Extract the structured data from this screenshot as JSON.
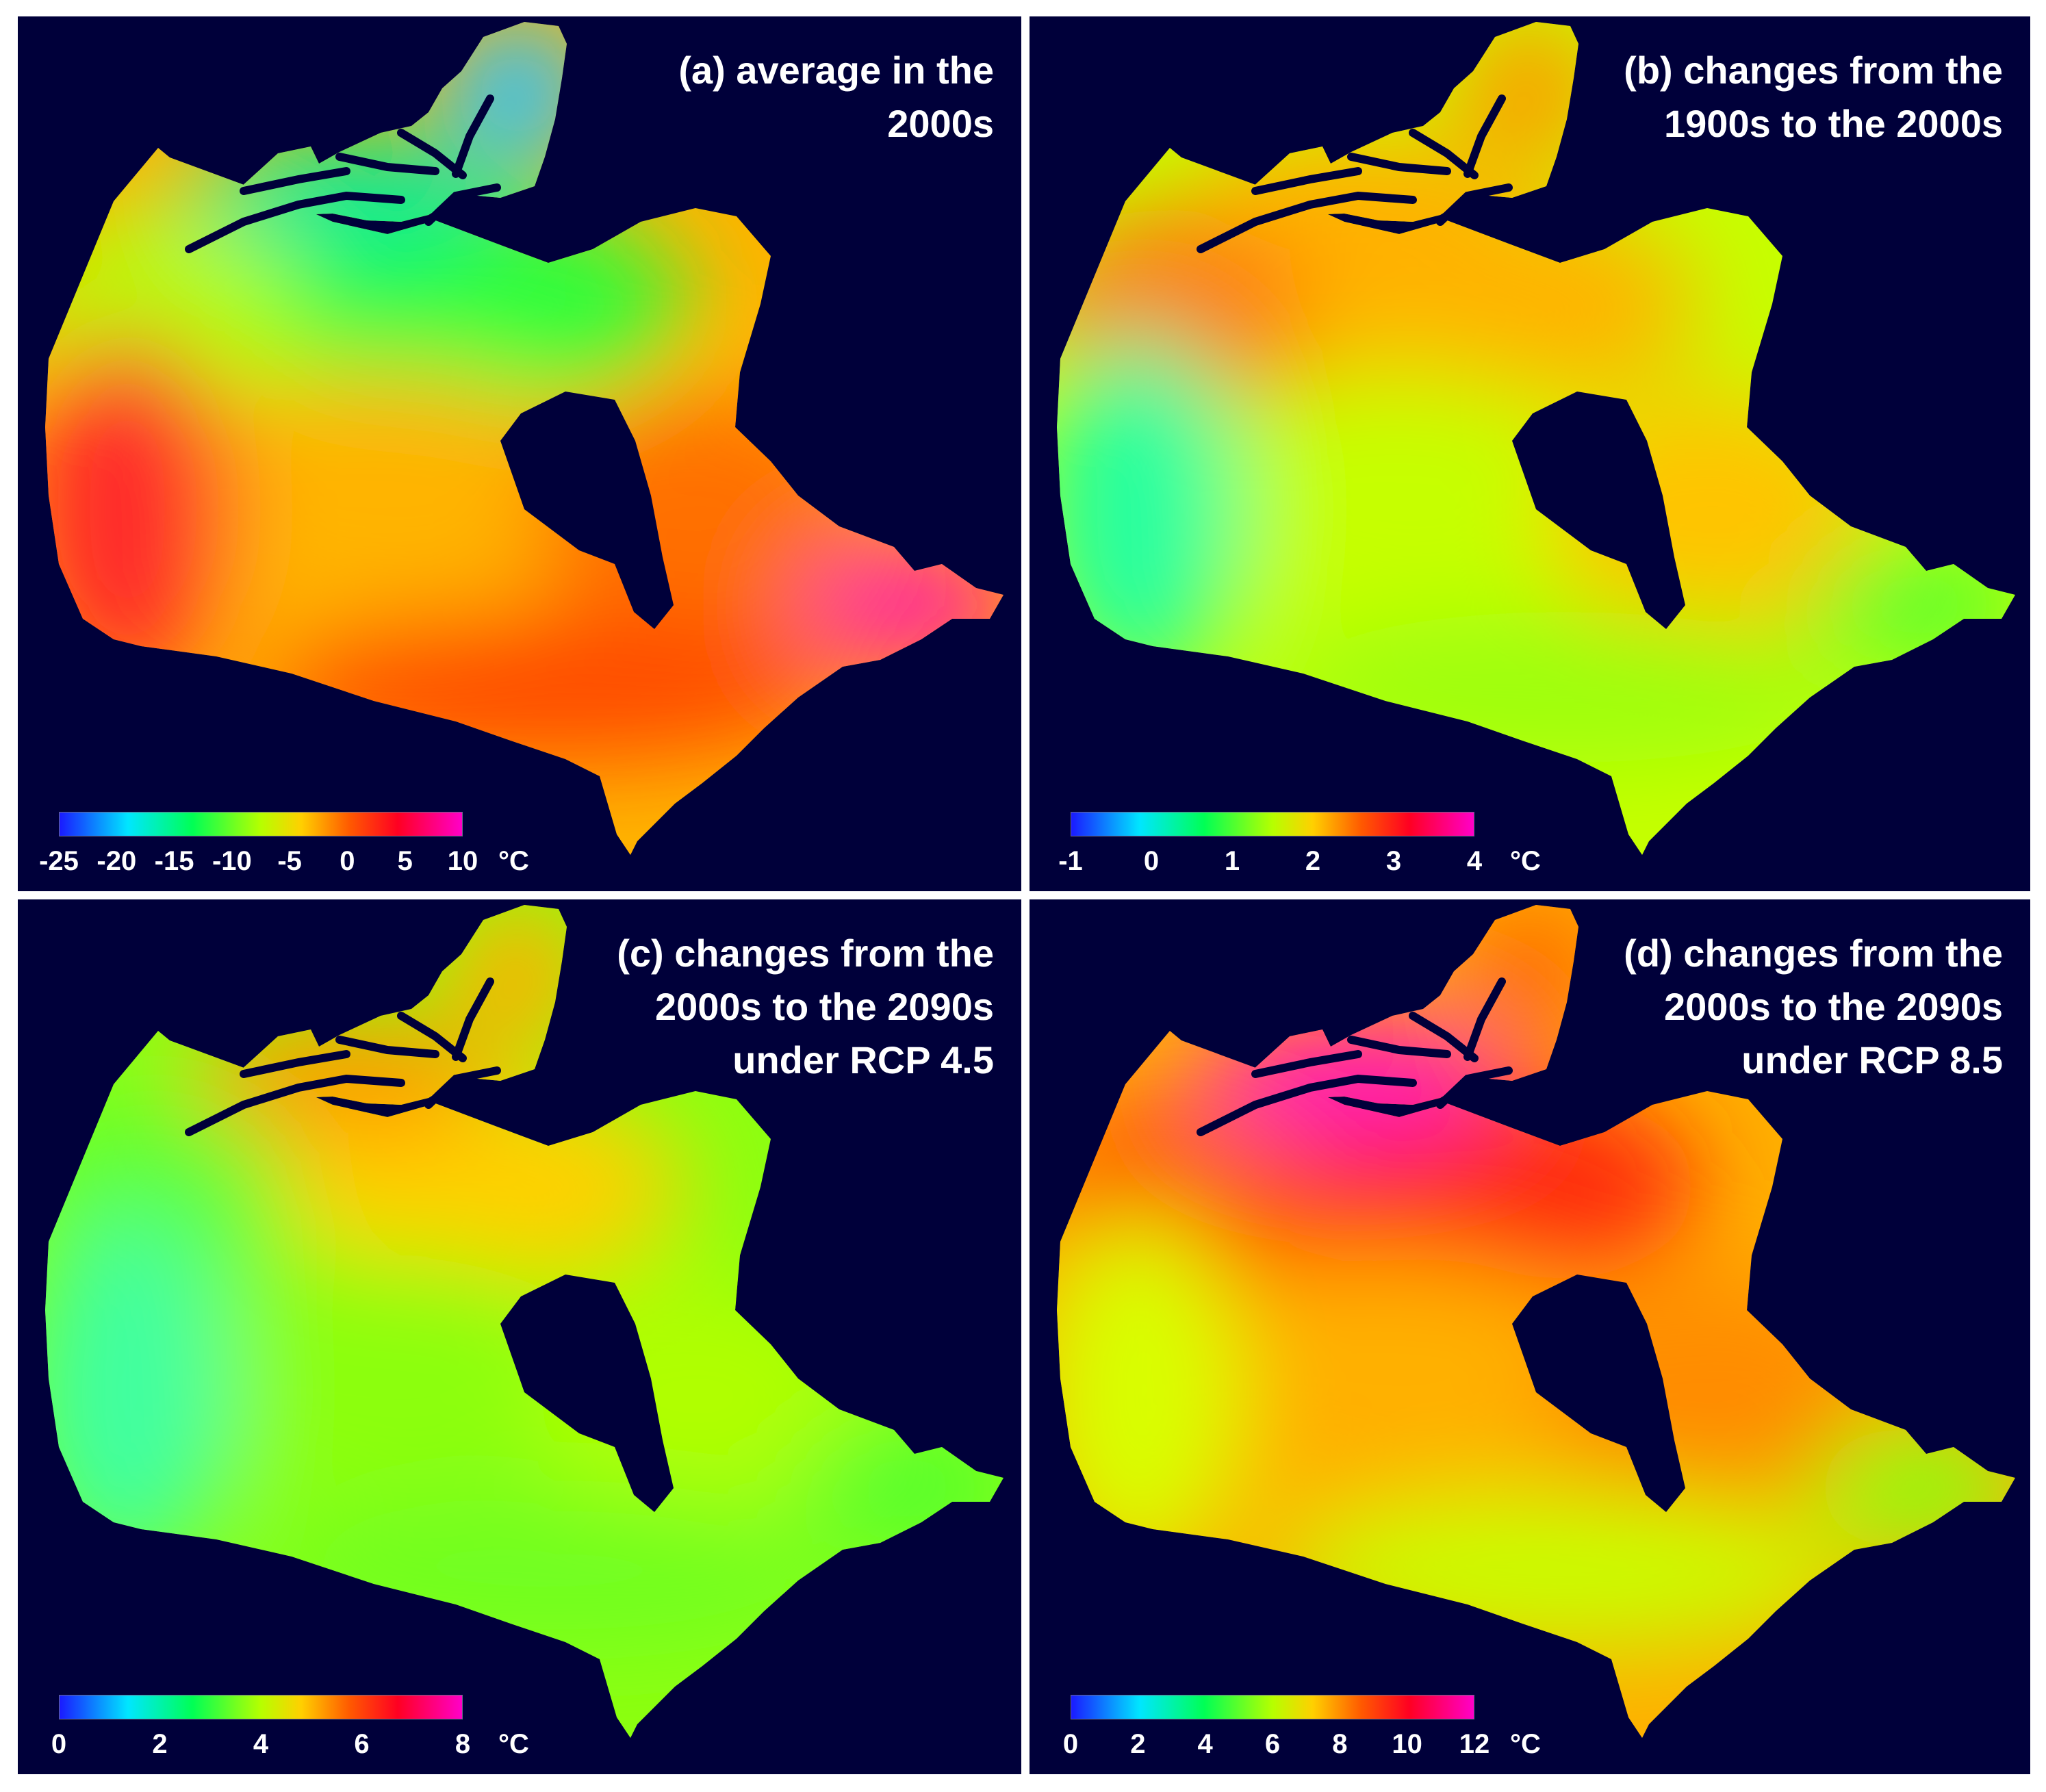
{
  "unit": "°C",
  "colors": {
    "background": "#00003a",
    "colormap": [
      "#1a1aff",
      "#00e6ff",
      "#00ff55",
      "#b6ff00",
      "#ffd000",
      "#ff5a00",
      "#ff0022",
      "#ff00c8"
    ]
  },
  "panels": [
    {
      "id": "a",
      "title_lines": [
        "(a)  average in the",
        "2000s"
      ],
      "colorbar": {
        "min": -25,
        "max": 10,
        "ticks": [
          "-25",
          "-20",
          "-15",
          "-10",
          "-5",
          "0",
          "5",
          "10"
        ]
      },
      "map_colors": {
        "northeast_islands": "#2fc2ff",
        "arctic_islands": "#00e89a",
        "northwest": "#b5ff00",
        "north_mainland": "#2cff3c",
        "interior": "#ffb400",
        "west_coast": "#ff2a2a",
        "south": "#ff4a00",
        "east": "#ff7000",
        "southeast_tip": "#ff1ea8"
      }
    },
    {
      "id": "b",
      "title_lines": [
        "(b) changes from the",
        "1900s to the 2000s"
      ],
      "colorbar": {
        "min": -1,
        "max": 4,
        "ticks": [
          "-1",
          "0",
          "1",
          "2",
          "3",
          "4"
        ]
      },
      "map_colors": {
        "northeast_islands": "#ff9a00",
        "arctic_islands": "#ffb000",
        "northwest": "#ff7a10",
        "north_mainland": "#ffb400",
        "interior": "#c6ff00",
        "west_coast": "#28ffa0",
        "south": "#9cff10",
        "east": "#ffc400",
        "southeast_tip": "#56ff30"
      }
    },
    {
      "id": "c",
      "title_lines": [
        "(c) changes from the",
        "2000s to the 2090s",
        "under RCP 4.5"
      ],
      "colorbar": {
        "min": 0,
        "max": 8,
        "ticks": [
          "0",
          "2",
          "4",
          "6",
          "8"
        ]
      },
      "map_colors": {
        "northeast_islands": "#ffb000",
        "arctic_islands": "#ff9a00",
        "northwest": "#60ff30",
        "north_mainland": "#ffd000",
        "interior": "#8cff10",
        "west_coast": "#40ffa0",
        "south": "#70ff20",
        "east": "#b0ff00",
        "southeast_tip": "#50ff30"
      }
    },
    {
      "id": "d",
      "title_lines": [
        "(d) changes from the",
        "2000s to the 2090s",
        "under RCP 8.5"
      ],
      "colorbar": {
        "min": 0,
        "max": 12,
        "ticks": [
          "0",
          "2",
          "4",
          "6",
          "8",
          "10",
          "12"
        ]
      },
      "map_colors": {
        "northeast_islands": "#ff6a00",
        "arctic_islands": "#ff18b8",
        "northwest": "#ff5a00",
        "north_mainland": "#ff2a10",
        "interior": "#ffb000",
        "west_coast": "#d8ff00",
        "south": "#c8ff00",
        "east": "#ff8c00",
        "southeast_tip": "#8cff10"
      }
    }
  ]
}
